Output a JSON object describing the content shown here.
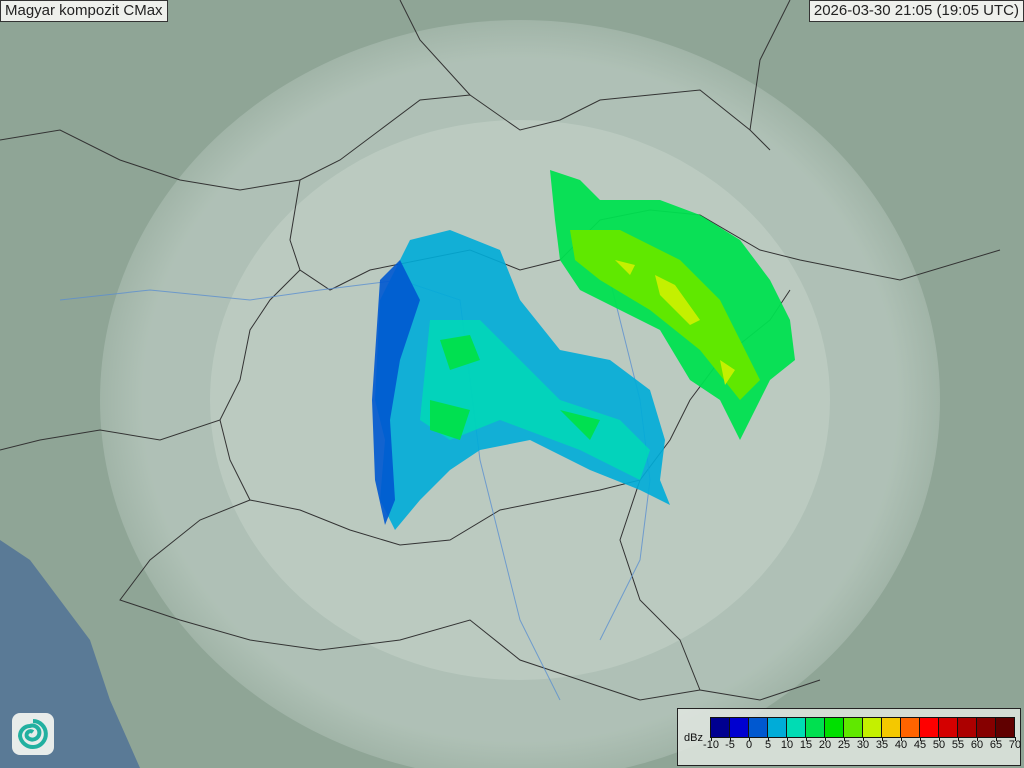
{
  "title": "Magyar kompozit  CMax",
  "timestamp": "2026-03-30 21:05 (19:05 UTC)",
  "legend": {
    "unit": "dBz",
    "ticks": [
      "-10",
      "-5",
      "0",
      "5",
      "10",
      "15",
      "20",
      "25",
      "30",
      "35",
      "40",
      "45",
      "50",
      "55",
      "60",
      "65",
      "70"
    ],
    "colors": [
      "#000090",
      "#0000d0",
      "#0058d0",
      "#00acd8",
      "#00dcb4",
      "#00e050",
      "#00e000",
      "#60e800",
      "#c4f000",
      "#f4c800",
      "#ff6400",
      "#ff0000",
      "#d40000",
      "#ac0000",
      "#860000",
      "#600000"
    ]
  },
  "map": {
    "land_color": "#8fa596",
    "sea_color": "#5a7a96",
    "coverage_color": "#d6e2dc",
    "border_color": "#333333",
    "river_color": "#5b8fd0"
  },
  "logo": {
    "icon": "swirl-logo-icon"
  }
}
